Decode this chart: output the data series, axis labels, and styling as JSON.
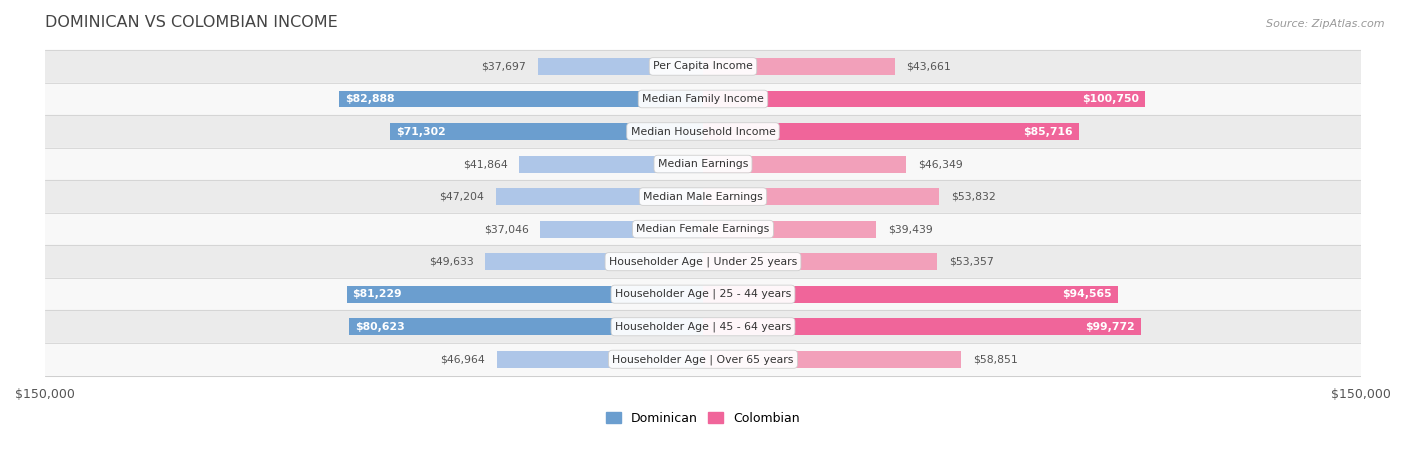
{
  "title": "DOMINICAN VS COLOMBIAN INCOME",
  "source": "Source: ZipAtlas.com",
  "categories": [
    "Per Capita Income",
    "Median Family Income",
    "Median Household Income",
    "Median Earnings",
    "Median Male Earnings",
    "Median Female Earnings",
    "Householder Age | Under 25 years",
    "Householder Age | 25 - 44 years",
    "Householder Age | 45 - 64 years",
    "Householder Age | Over 65 years"
  ],
  "dominican_values": [
    37697,
    82888,
    71302,
    41864,
    47204,
    37046,
    49633,
    81229,
    80623,
    46964
  ],
  "colombian_values": [
    43661,
    100750,
    85716,
    46349,
    53832,
    39439,
    53357,
    94565,
    99772,
    58851
  ],
  "dominican_labels": [
    "$37,697",
    "$82,888",
    "$71,302",
    "$41,864",
    "$47,204",
    "$37,046",
    "$49,633",
    "$81,229",
    "$80,623",
    "$46,964"
  ],
  "colombian_labels": [
    "$43,661",
    "$100,750",
    "$85,716",
    "$46,349",
    "$53,832",
    "$39,439",
    "$53,357",
    "$94,565",
    "$99,772",
    "$58,851"
  ],
  "dom_color_light": "#aec6e8",
  "dom_color_dark": "#6b9ecf",
  "col_color_light": "#f2a0ba",
  "col_color_dark": "#f0659a",
  "axis_limit": 150000,
  "bar_height": 0.52,
  "fig_bg": "#ffffff",
  "row_colors": [
    "#ebebeb",
    "#f8f8f8"
  ],
  "large_thresh": 68000,
  "label_fontsize": 7.8,
  "cat_fontsize": 7.8,
  "title_fontsize": 11.5,
  "source_fontsize": 8.0,
  "legend_fontsize": 9.0
}
